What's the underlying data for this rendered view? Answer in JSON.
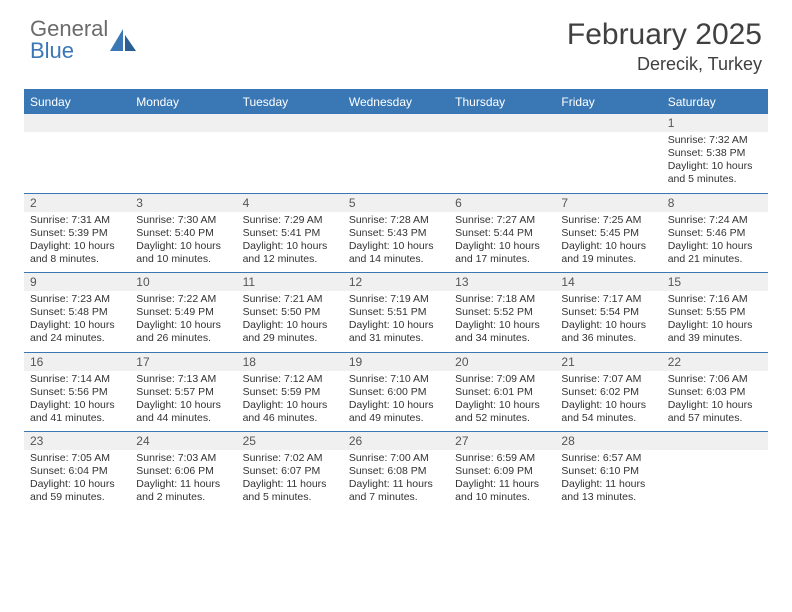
{
  "logo": {
    "top": "General",
    "bottom": "Blue"
  },
  "title": "February 2025",
  "location": "Derecik, Turkey",
  "colors": {
    "accent": "#3a78b5",
    "header_text": "#ffffff",
    "band_bg": "#f0f0f0",
    "text": "#333333",
    "logo_gray": "#6b6b6b"
  },
  "day_headers": [
    "Sunday",
    "Monday",
    "Tuesday",
    "Wednesday",
    "Thursday",
    "Friday",
    "Saturday"
  ],
  "weeks": [
    [
      {
        "n": "",
        "lines": []
      },
      {
        "n": "",
        "lines": []
      },
      {
        "n": "",
        "lines": []
      },
      {
        "n": "",
        "lines": []
      },
      {
        "n": "",
        "lines": []
      },
      {
        "n": "",
        "lines": []
      },
      {
        "n": "1",
        "lines": [
          "Sunrise: 7:32 AM",
          "Sunset: 5:38 PM",
          "Daylight: 10 hours",
          "and 5 minutes."
        ]
      }
    ],
    [
      {
        "n": "2",
        "lines": [
          "Sunrise: 7:31 AM",
          "Sunset: 5:39 PM",
          "Daylight: 10 hours",
          "and 8 minutes."
        ]
      },
      {
        "n": "3",
        "lines": [
          "Sunrise: 7:30 AM",
          "Sunset: 5:40 PM",
          "Daylight: 10 hours",
          "and 10 minutes."
        ]
      },
      {
        "n": "4",
        "lines": [
          "Sunrise: 7:29 AM",
          "Sunset: 5:41 PM",
          "Daylight: 10 hours",
          "and 12 minutes."
        ]
      },
      {
        "n": "5",
        "lines": [
          "Sunrise: 7:28 AM",
          "Sunset: 5:43 PM",
          "Daylight: 10 hours",
          "and 14 minutes."
        ]
      },
      {
        "n": "6",
        "lines": [
          "Sunrise: 7:27 AM",
          "Sunset: 5:44 PM",
          "Daylight: 10 hours",
          "and 17 minutes."
        ]
      },
      {
        "n": "7",
        "lines": [
          "Sunrise: 7:25 AM",
          "Sunset: 5:45 PM",
          "Daylight: 10 hours",
          "and 19 minutes."
        ]
      },
      {
        "n": "8",
        "lines": [
          "Sunrise: 7:24 AM",
          "Sunset: 5:46 PM",
          "Daylight: 10 hours",
          "and 21 minutes."
        ]
      }
    ],
    [
      {
        "n": "9",
        "lines": [
          "Sunrise: 7:23 AM",
          "Sunset: 5:48 PM",
          "Daylight: 10 hours",
          "and 24 minutes."
        ]
      },
      {
        "n": "10",
        "lines": [
          "Sunrise: 7:22 AM",
          "Sunset: 5:49 PM",
          "Daylight: 10 hours",
          "and 26 minutes."
        ]
      },
      {
        "n": "11",
        "lines": [
          "Sunrise: 7:21 AM",
          "Sunset: 5:50 PM",
          "Daylight: 10 hours",
          "and 29 minutes."
        ]
      },
      {
        "n": "12",
        "lines": [
          "Sunrise: 7:19 AM",
          "Sunset: 5:51 PM",
          "Daylight: 10 hours",
          "and 31 minutes."
        ]
      },
      {
        "n": "13",
        "lines": [
          "Sunrise: 7:18 AM",
          "Sunset: 5:52 PM",
          "Daylight: 10 hours",
          "and 34 minutes."
        ]
      },
      {
        "n": "14",
        "lines": [
          "Sunrise: 7:17 AM",
          "Sunset: 5:54 PM",
          "Daylight: 10 hours",
          "and 36 minutes."
        ]
      },
      {
        "n": "15",
        "lines": [
          "Sunrise: 7:16 AM",
          "Sunset: 5:55 PM",
          "Daylight: 10 hours",
          "and 39 minutes."
        ]
      }
    ],
    [
      {
        "n": "16",
        "lines": [
          "Sunrise: 7:14 AM",
          "Sunset: 5:56 PM",
          "Daylight: 10 hours",
          "and 41 minutes."
        ]
      },
      {
        "n": "17",
        "lines": [
          "Sunrise: 7:13 AM",
          "Sunset: 5:57 PM",
          "Daylight: 10 hours",
          "and 44 minutes."
        ]
      },
      {
        "n": "18",
        "lines": [
          "Sunrise: 7:12 AM",
          "Sunset: 5:59 PM",
          "Daylight: 10 hours",
          "and 46 minutes."
        ]
      },
      {
        "n": "19",
        "lines": [
          "Sunrise: 7:10 AM",
          "Sunset: 6:00 PM",
          "Daylight: 10 hours",
          "and 49 minutes."
        ]
      },
      {
        "n": "20",
        "lines": [
          "Sunrise: 7:09 AM",
          "Sunset: 6:01 PM",
          "Daylight: 10 hours",
          "and 52 minutes."
        ]
      },
      {
        "n": "21",
        "lines": [
          "Sunrise: 7:07 AM",
          "Sunset: 6:02 PM",
          "Daylight: 10 hours",
          "and 54 minutes."
        ]
      },
      {
        "n": "22",
        "lines": [
          "Sunrise: 7:06 AM",
          "Sunset: 6:03 PM",
          "Daylight: 10 hours",
          "and 57 minutes."
        ]
      }
    ],
    [
      {
        "n": "23",
        "lines": [
          "Sunrise: 7:05 AM",
          "Sunset: 6:04 PM",
          "Daylight: 10 hours",
          "and 59 minutes."
        ]
      },
      {
        "n": "24",
        "lines": [
          "Sunrise: 7:03 AM",
          "Sunset: 6:06 PM",
          "Daylight: 11 hours",
          "and 2 minutes."
        ]
      },
      {
        "n": "25",
        "lines": [
          "Sunrise: 7:02 AM",
          "Sunset: 6:07 PM",
          "Daylight: 11 hours",
          "and 5 minutes."
        ]
      },
      {
        "n": "26",
        "lines": [
          "Sunrise: 7:00 AM",
          "Sunset: 6:08 PM",
          "Daylight: 11 hours",
          "and 7 minutes."
        ]
      },
      {
        "n": "27",
        "lines": [
          "Sunrise: 6:59 AM",
          "Sunset: 6:09 PM",
          "Daylight: 11 hours",
          "and 10 minutes."
        ]
      },
      {
        "n": "28",
        "lines": [
          "Sunrise: 6:57 AM",
          "Sunset: 6:10 PM",
          "Daylight: 11 hours",
          "and 13 minutes."
        ]
      },
      {
        "n": "",
        "lines": []
      }
    ]
  ]
}
